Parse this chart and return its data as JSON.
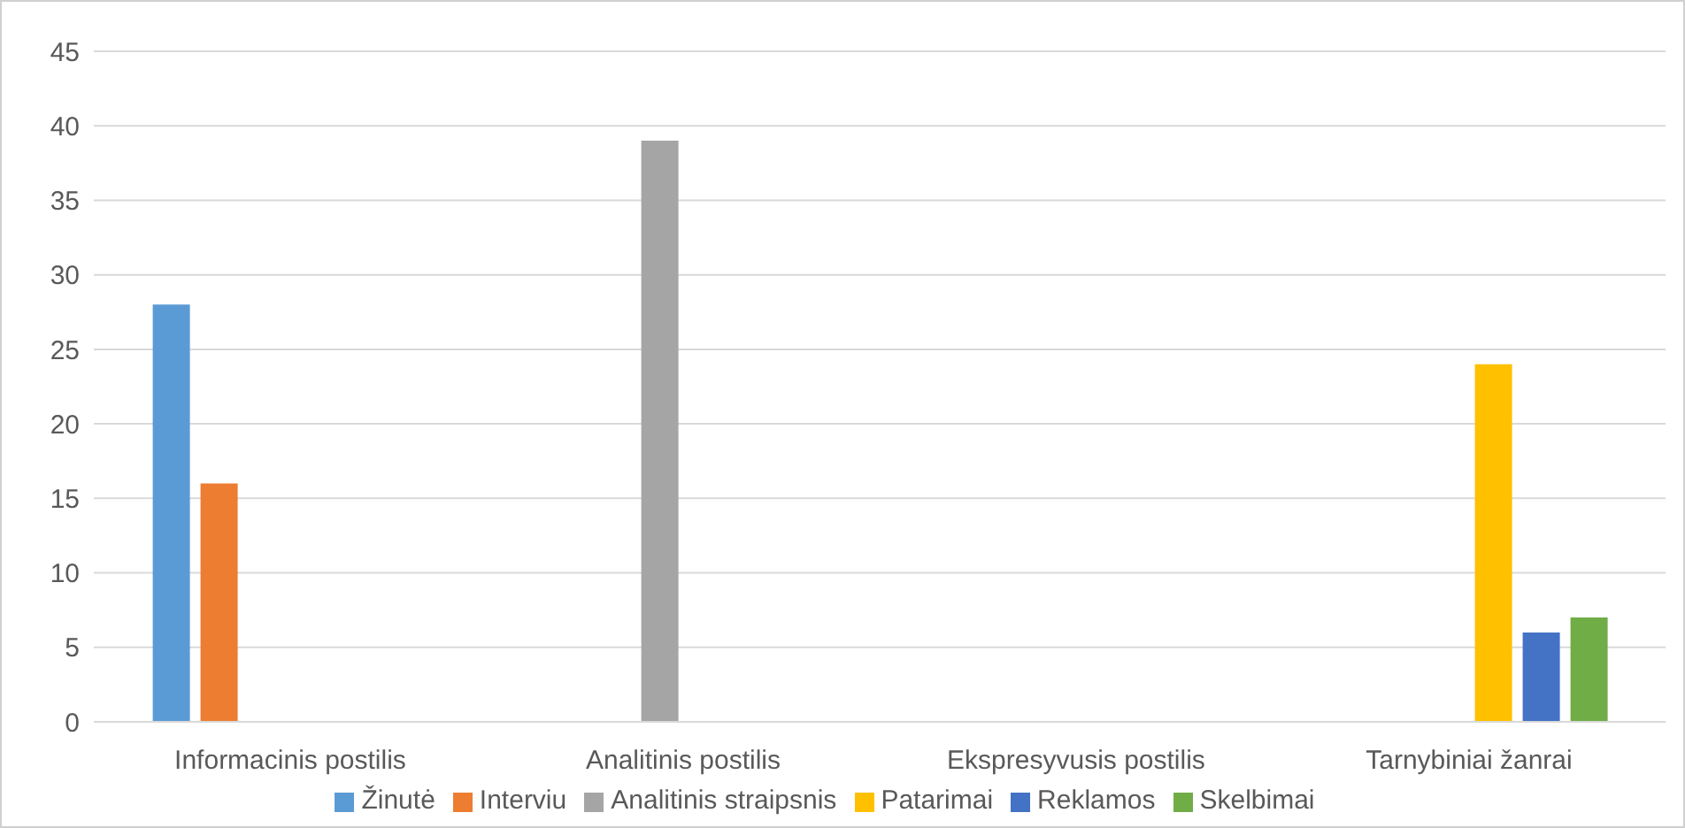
{
  "chart_data": {
    "type": "bar",
    "categories": [
      "Informacinis postilis",
      "Analitinis postilis",
      "Ekspresyvusis postilis",
      "Tarnybiniai žanrai"
    ],
    "series": [
      {
        "name": "Žinutė",
        "color": "#5b9bd5",
        "values": [
          28,
          null,
          null,
          null
        ]
      },
      {
        "name": "Interviu",
        "color": "#ed7d31",
        "values": [
          16,
          null,
          null,
          null
        ]
      },
      {
        "name": "Analitinis straipsnis",
        "color": "#a5a5a5",
        "values": [
          null,
          39,
          null,
          null
        ]
      },
      {
        "name": "Patarimai",
        "color": "#ffc000",
        "values": [
          null,
          null,
          null,
          24
        ]
      },
      {
        "name": "Reklamos",
        "color": "#4472c4",
        "values": [
          null,
          null,
          null,
          6
        ]
      },
      {
        "name": "Skelbimai",
        "color": "#70ad47",
        "values": [
          null,
          null,
          null,
          7
        ]
      }
    ],
    "ylim": [
      0,
      45
    ],
    "yticks": [
      0,
      5,
      10,
      15,
      20,
      25,
      30,
      35,
      40,
      45
    ],
    "grid": "y",
    "legend": "bottom"
  }
}
